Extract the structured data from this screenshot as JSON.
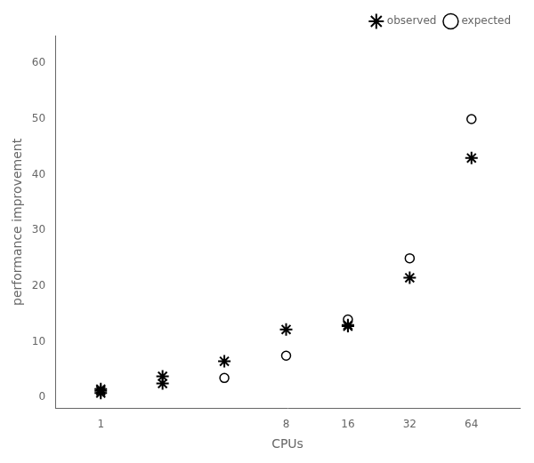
{
  "chart_data": {
    "type": "scatter",
    "xlabel": "CPUs",
    "ylabel": "performance improvement",
    "series": [
      {
        "name": "observed",
        "color": "black",
        "marker": "star",
        "x": [
          1,
          1,
          1,
          2,
          2,
          4,
          8,
          16,
          16,
          32,
          64
        ],
        "values": [
          0.8,
          1.2,
          1.5,
          2.5,
          3.8,
          6.5,
          12.2,
          12.8,
          13.0,
          21.5,
          43.0
        ]
      },
      {
        "name": "expected",
        "color": "black",
        "marker": "circle",
        "x": [
          4,
          8,
          16,
          32,
          64
        ],
        "values": [
          3.5,
          7.5,
          14.0,
          25.0,
          50.0
        ]
      }
    ],
    "log": "x",
    "xlim": [
      0.6,
      110
    ],
    "xticks": [
      1,
      8,
      16,
      32,
      64
    ],
    "ylim": [
      -2,
      65
    ],
    "yticks": [
      0,
      10,
      20,
      30,
      40,
      50,
      60
    ],
    "grid": false,
    "legend": "upper right"
  }
}
